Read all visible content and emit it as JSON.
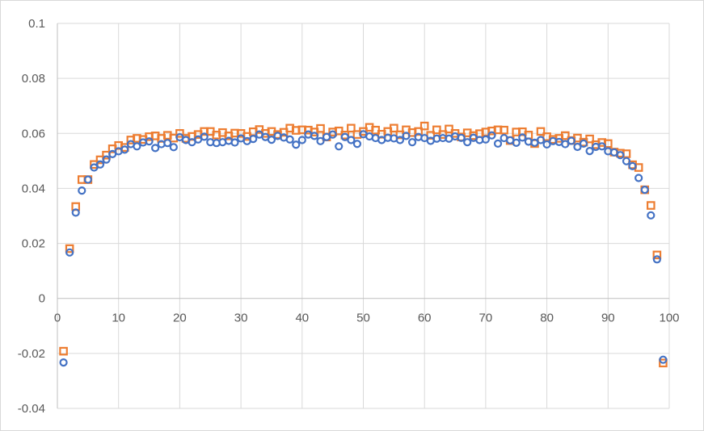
{
  "chart_data": {
    "type": "scatter",
    "title": "",
    "xlabel": "",
    "ylabel": "",
    "xlim": [
      0,
      100
    ],
    "ylim": [
      -0.04,
      0.1
    ],
    "x_ticks": [
      0,
      10,
      20,
      30,
      40,
      50,
      60,
      70,
      80,
      90,
      100
    ],
    "y_ticks": [
      -0.04,
      -0.02,
      0,
      0.02,
      0.04,
      0.06,
      0.08,
      0.1
    ],
    "x_tick_labels": [
      "0",
      "10",
      "20",
      "30",
      "40",
      "50",
      "60",
      "70",
      "80",
      "90",
      "100"
    ],
    "y_tick_labels": [
      "-0.04",
      "-0.02",
      "0",
      "0.02",
      "0.04",
      "0.06",
      "0.08",
      "0.1"
    ],
    "grid": true,
    "legend": "none",
    "series": [
      {
        "marker": "circle",
        "color": "#4472C4",
        "points": [
          [
            1,
            -0.0233
          ],
          [
            2,
            0.0167
          ],
          [
            3,
            0.0312
          ],
          [
            4,
            0.0392
          ],
          [
            5,
            0.0432
          ],
          [
            6,
            0.0476
          ],
          [
            7,
            0.0487
          ],
          [
            8,
            0.0505
          ],
          [
            9,
            0.0525
          ],
          [
            10,
            0.0535
          ],
          [
            11,
            0.0541
          ],
          [
            12,
            0.0561
          ],
          [
            13,
            0.0553
          ],
          [
            14,
            0.0567
          ],
          [
            15,
            0.0571
          ],
          [
            16,
            0.0547
          ],
          [
            17,
            0.0561
          ],
          [
            18,
            0.0565
          ],
          [
            19,
            0.055
          ],
          [
            20,
            0.0586
          ],
          [
            21,
            0.0576
          ],
          [
            22,
            0.0568
          ],
          [
            23,
            0.0578
          ],
          [
            24,
            0.0588
          ],
          [
            25,
            0.0568
          ],
          [
            26,
            0.0565
          ],
          [
            27,
            0.0568
          ],
          [
            28,
            0.0573
          ],
          [
            29,
            0.0567
          ],
          [
            30,
            0.0582
          ],
          [
            31,
            0.0572
          ],
          [
            32,
            0.058
          ],
          [
            33,
            0.0596
          ],
          [
            34,
            0.0587
          ],
          [
            35,
            0.0577
          ],
          [
            36,
            0.0591
          ],
          [
            37,
            0.0585
          ],
          [
            38,
            0.0578
          ],
          [
            39,
            0.0559
          ],
          [
            40,
            0.0576
          ],
          [
            41,
            0.0596
          ],
          [
            42,
            0.0591
          ],
          [
            43,
            0.0572
          ],
          [
            44,
            0.0587
          ],
          [
            45,
            0.0596
          ],
          [
            46,
            0.0553
          ],
          [
            47,
            0.0587
          ],
          [
            48,
            0.0576
          ],
          [
            49,
            0.0562
          ],
          [
            50,
            0.0597
          ],
          [
            51,
            0.0589
          ],
          [
            52,
            0.0583
          ],
          [
            53,
            0.0576
          ],
          [
            54,
            0.0584
          ],
          [
            55,
            0.0582
          ],
          [
            56,
            0.0576
          ],
          [
            57,
            0.0591
          ],
          [
            58,
            0.0568
          ],
          [
            59,
            0.0587
          ],
          [
            60,
            0.0583
          ],
          [
            61,
            0.0573
          ],
          [
            62,
            0.0581
          ],
          [
            63,
            0.0583
          ],
          [
            64,
            0.0581
          ],
          [
            65,
            0.0589
          ],
          [
            66,
            0.0584
          ],
          [
            67,
            0.0568
          ],
          [
            68,
            0.0584
          ],
          [
            69,
            0.0576
          ],
          [
            70,
            0.0578
          ],
          [
            71,
            0.0593
          ],
          [
            72,
            0.0563
          ],
          [
            73,
            0.0583
          ],
          [
            74,
            0.0575
          ],
          [
            75,
            0.0566
          ],
          [
            76,
            0.0585
          ],
          [
            77,
            0.057
          ],
          [
            78,
            0.0566
          ],
          [
            79,
            0.0576
          ],
          [
            80,
            0.056
          ],
          [
            81,
            0.0572
          ],
          [
            82,
            0.0569
          ],
          [
            83,
            0.0561
          ],
          [
            84,
            0.0573
          ],
          [
            85,
            0.0551
          ],
          [
            86,
            0.0563
          ],
          [
            87,
            0.0536
          ],
          [
            88,
            0.0551
          ],
          [
            89,
            0.0553
          ],
          [
            90,
            0.0535
          ],
          [
            91,
            0.0531
          ],
          [
            92,
            0.0521
          ],
          [
            93,
            0.0499
          ],
          [
            94,
            0.0481
          ],
          [
            95,
            0.0438
          ],
          [
            96,
            0.0395
          ],
          [
            97,
            0.0302
          ],
          [
            98,
            0.0142
          ],
          [
            99,
            -0.0223
          ]
        ]
      },
      {
        "marker": "square",
        "color": "#ED7D31",
        "points": [
          [
            1,
            -0.0192
          ],
          [
            2,
            0.0181
          ],
          [
            3,
            0.0334
          ],
          [
            4,
            0.0432
          ],
          [
            5,
            0.0432
          ],
          [
            6,
            0.0487
          ],
          [
            7,
            0.0504
          ],
          [
            8,
            0.0521
          ],
          [
            9,
            0.0544
          ],
          [
            10,
            0.0556
          ],
          [
            11,
            0.0549
          ],
          [
            12,
            0.0576
          ],
          [
            13,
            0.0582
          ],
          [
            14,
            0.0578
          ],
          [
            15,
            0.0588
          ],
          [
            16,
            0.0591
          ],
          [
            17,
            0.0582
          ],
          [
            18,
            0.0593
          ],
          [
            19,
            0.0583
          ],
          [
            20,
            0.06
          ],
          [
            21,
            0.0582
          ],
          [
            22,
            0.0589
          ],
          [
            23,
            0.0596
          ],
          [
            24,
            0.0607
          ],
          [
            25,
            0.0607
          ],
          [
            26,
            0.0594
          ],
          [
            27,
            0.0603
          ],
          [
            28,
            0.0591
          ],
          [
            29,
            0.0601
          ],
          [
            30,
            0.06
          ],
          [
            31,
            0.0589
          ],
          [
            32,
            0.0606
          ],
          [
            33,
            0.0614
          ],
          [
            34,
            0.06
          ],
          [
            35,
            0.0607
          ],
          [
            36,
            0.0596
          ],
          [
            37,
            0.0604
          ],
          [
            38,
            0.0619
          ],
          [
            39,
            0.0611
          ],
          [
            40,
            0.0613
          ],
          [
            41,
            0.0612
          ],
          [
            42,
            0.0605
          ],
          [
            43,
            0.0618
          ],
          [
            44,
            0.0587
          ],
          [
            45,
            0.0605
          ],
          [
            46,
            0.0609
          ],
          [
            47,
            0.0594
          ],
          [
            48,
            0.0619
          ],
          [
            49,
            0.0596
          ],
          [
            50,
            0.0607
          ],
          [
            51,
            0.0622
          ],
          [
            52,
            0.0612
          ],
          [
            53,
            0.0597
          ],
          [
            54,
            0.0607
          ],
          [
            55,
            0.0619
          ],
          [
            56,
            0.0595
          ],
          [
            57,
            0.0613
          ],
          [
            58,
            0.0603
          ],
          [
            59,
            0.0607
          ],
          [
            60,
            0.0627
          ],
          [
            61,
            0.0593
          ],
          [
            62,
            0.0613
          ],
          [
            63,
            0.0596
          ],
          [
            64,
            0.0616
          ],
          [
            65,
            0.06
          ],
          [
            66,
            0.0587
          ],
          [
            67,
            0.0602
          ],
          [
            68,
            0.0592
          ],
          [
            69,
            0.0599
          ],
          [
            70,
            0.0605
          ],
          [
            71,
            0.0609
          ],
          [
            72,
            0.0613
          ],
          [
            73,
            0.0612
          ],
          [
            74,
            0.0574
          ],
          [
            75,
            0.0605
          ],
          [
            76,
            0.0606
          ],
          [
            77,
            0.0594
          ],
          [
            78,
            0.0563
          ],
          [
            79,
            0.0607
          ],
          [
            80,
            0.0588
          ],
          [
            81,
            0.0578
          ],
          [
            82,
            0.0582
          ],
          [
            83,
            0.0592
          ],
          [
            84,
            0.0574
          ],
          [
            85,
            0.0583
          ],
          [
            86,
            0.0568
          ],
          [
            87,
            0.058
          ],
          [
            88,
            0.0559
          ],
          [
            89,
            0.0567
          ],
          [
            90,
            0.0563
          ],
          [
            91,
            0.0532
          ],
          [
            92,
            0.0528
          ],
          [
            93,
            0.0526
          ],
          [
            94,
            0.0486
          ],
          [
            95,
            0.0476
          ],
          [
            96,
            0.0395
          ],
          [
            97,
            0.0338
          ],
          [
            98,
            0.0158
          ],
          [
            99,
            -0.0235
          ]
        ]
      }
    ]
  }
}
